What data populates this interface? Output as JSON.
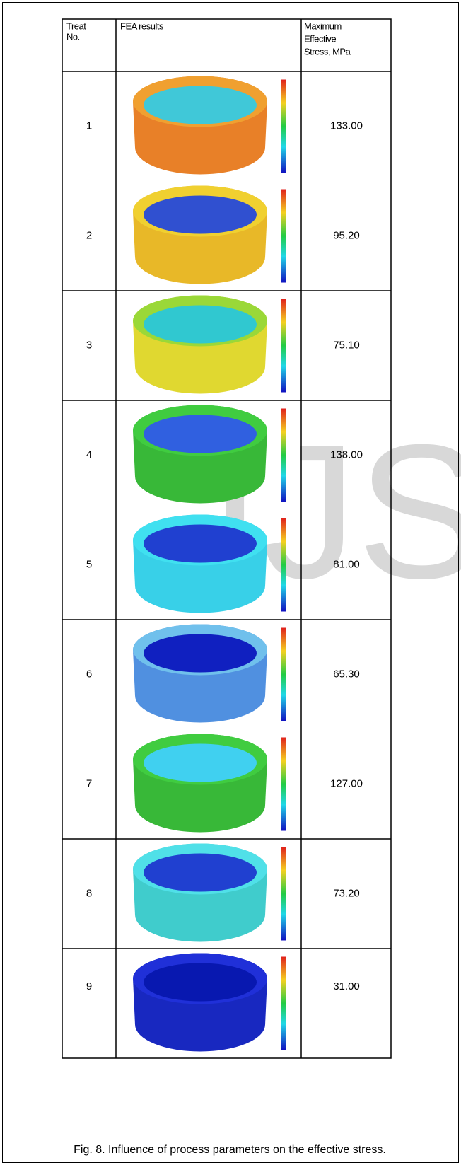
{
  "header": {
    "treat": [
      "Treat",
      "No."
    ],
    "fea": "FEA results",
    "stress": [
      "Maximum",
      "Effective",
      "Stress, MPa"
    ]
  },
  "table": {
    "groups": [
      {
        "rows": [
          {
            "no": "1",
            "stress": "133.00"
          },
          {
            "no": "2",
            "stress": "95.20"
          }
        ]
      },
      {
        "rows": [
          {
            "no": "3",
            "stress": "75.10"
          }
        ]
      },
      {
        "rows": [
          {
            "no": "4",
            "stress": "138.00"
          },
          {
            "no": "5",
            "stress": "81.00"
          }
        ]
      },
      {
        "rows": [
          {
            "no": "6",
            "stress": "65.30"
          },
          {
            "no": "7",
            "stress": "127.00"
          }
        ]
      },
      {
        "rows": [
          {
            "no": "8",
            "stress": "73.20"
          }
        ]
      },
      {
        "rows": [
          {
            "no": "9",
            "stress": "31.00"
          }
        ]
      }
    ]
  },
  "watermark": "IJS",
  "caption": "Fig. 8. Influence of process parameters on the effective stress."
}
